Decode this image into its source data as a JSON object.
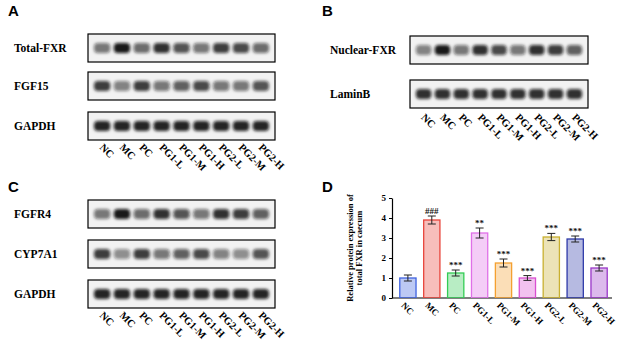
{
  "chart_data": {
    "type": "bar",
    "panel": "D",
    "y_label": "Relative protein expression of total FXR in caecum",
    "categories": [
      "NC",
      "MC",
      "PC",
      "PG1-L",
      "PG1-M",
      "PG1-H",
      "PG2-L",
      "PG2-M",
      "PG2-H"
    ],
    "values": [
      1.0,
      3.9,
      1.25,
      3.25,
      1.75,
      1.0,
      3.05,
      2.95,
      1.5
    ],
    "errors": [
      0.15,
      0.2,
      0.15,
      0.25,
      0.2,
      0.12,
      0.18,
      0.15,
      0.15
    ],
    "colors": [
      "#3f63e0",
      "#e8453c",
      "#33cc55",
      "#e070e8",
      "#f4a030",
      "#d94fd0",
      "#c9b030",
      "#2f3aa8",
      "#9a38c8"
    ],
    "annotations": [
      null,
      "###",
      "***",
      "**",
      "***",
      "***",
      "***",
      "***",
      "***"
    ],
    "ylim": [
      0,
      5
    ],
    "yticks": [
      0,
      1,
      2,
      3,
      4,
      5
    ]
  },
  "blots": [
    {
      "panel": "A",
      "lanes": [
        "NC",
        "MC",
        "PC",
        "PG1-L",
        "PG1-M",
        "PG1-H",
        "PG2-L",
        "PG2-M",
        "PG2-H"
      ],
      "rows": [
        {
          "label": "Total-FXR",
          "intensity": [
            0.55,
            0.95,
            0.6,
            0.85,
            0.7,
            0.55,
            0.8,
            0.75,
            0.6
          ]
        },
        {
          "label": "FGF15",
          "intensity": [
            0.8,
            0.5,
            0.8,
            0.55,
            0.65,
            0.75,
            0.55,
            0.55,
            0.7
          ]
        },
        {
          "label": "GAPDH",
          "intensity": [
            0.9,
            0.9,
            0.9,
            0.9,
            0.9,
            0.9,
            0.9,
            0.9,
            0.9
          ]
        }
      ]
    },
    {
      "panel": "B",
      "lanes": [
        "NC",
        "MC",
        "PC",
        "PG1-L",
        "PG1-M",
        "PG1-H",
        "PG2-L",
        "PG2-M",
        "PG2-H"
      ],
      "rows": [
        {
          "label": "Nuclear-FXR",
          "intensity": [
            0.5,
            0.95,
            0.55,
            0.85,
            0.75,
            0.55,
            0.85,
            0.8,
            0.65
          ]
        },
        {
          "label": "LaminB",
          "intensity": [
            0.85,
            0.85,
            0.85,
            0.85,
            0.85,
            0.85,
            0.85,
            0.85,
            0.85
          ]
        }
      ]
    },
    {
      "panel": "C",
      "lanes": [
        "NC",
        "MC",
        "PC",
        "PG1-L",
        "PG1-M",
        "PG1-H",
        "PG2-L",
        "PG2-M",
        "PG2-H"
      ],
      "rows": [
        {
          "label": "FGFR4",
          "intensity": [
            0.55,
            0.95,
            0.6,
            0.85,
            0.7,
            0.55,
            0.85,
            0.8,
            0.65
          ]
        },
        {
          "label": "CYP7A1",
          "intensity": [
            0.8,
            0.45,
            0.8,
            0.55,
            0.65,
            0.75,
            0.5,
            0.45,
            0.7
          ]
        },
        {
          "label": "GAPDH",
          "intensity": [
            0.9,
            0.9,
            0.9,
            0.9,
            0.9,
            0.9,
            0.9,
            0.9,
            0.9
          ]
        }
      ]
    }
  ]
}
